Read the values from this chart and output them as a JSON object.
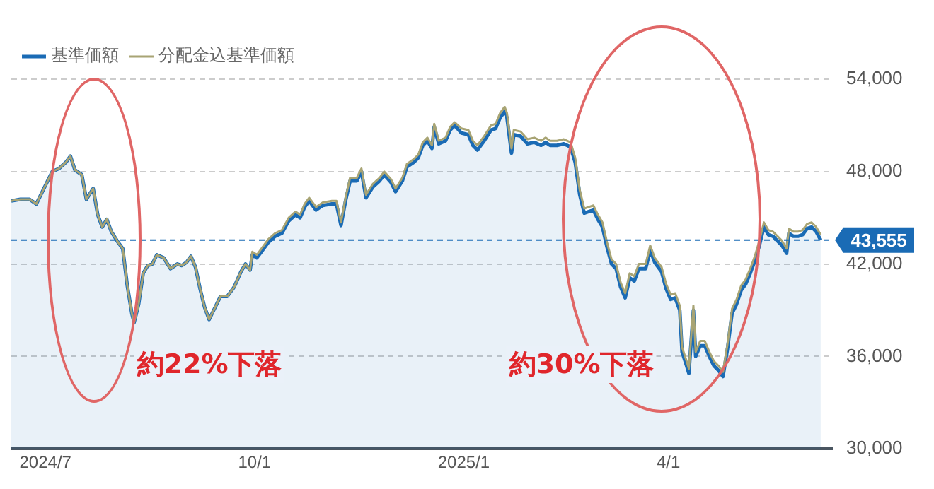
{
  "chart_data": {
    "type": "line",
    "x": [
      "2024-06-16",
      "2024-06-20",
      "2024-06-24",
      "2024-06-27",
      "2024-07-01",
      "2024-07-04",
      "2024-07-07",
      "2024-07-10",
      "2024-07-12",
      "2024-07-14",
      "2024-07-17",
      "2024-07-19",
      "2024-07-22",
      "2024-07-24",
      "2024-07-26",
      "2024-07-28",
      "2024-07-30",
      "2024-08-02",
      "2024-08-04",
      "2024-08-06",
      "2024-08-08",
      "2024-08-09",
      "2024-08-11",
      "2024-08-13",
      "2024-08-15",
      "2024-08-17",
      "2024-08-19",
      "2024-08-22",
      "2024-08-25",
      "2024-08-28",
      "2024-08-30",
      "2024-09-01",
      "2024-09-03",
      "2024-09-05",
      "2024-09-07",
      "2024-09-09",
      "2024-09-11",
      "2024-09-13",
      "2024-09-16",
      "2024-09-19",
      "2024-09-22",
      "2024-09-25",
      "2024-09-27",
      "2024-09-29",
      "2024-09-30",
      "2024-10-02",
      "2024-10-04",
      "2024-10-07",
      "2024-10-10",
      "2024-10-13",
      "2024-10-16",
      "2024-10-19",
      "2024-10-21",
      "2024-10-23",
      "2024-10-25",
      "2024-10-28",
      "2024-10-31",
      "2024-11-04",
      "2024-11-06",
      "2024-11-08",
      "2024-11-10",
      "2024-11-12",
      "2024-11-15",
      "2024-11-17",
      "2024-11-19",
      "2024-11-22",
      "2024-11-25",
      "2024-11-27",
      "2024-11-30",
      "2024-12-02",
      "2024-12-05",
      "2024-12-07",
      "2024-12-10",
      "2024-12-12",
      "2024-12-14",
      "2024-12-16",
      "2024-12-18",
      "2024-12-19",
      "2024-12-21",
      "2024-12-24",
      "2024-12-26",
      "2024-12-28",
      "2024-12-31",
      "2025-01-03",
      "2025-01-05",
      "2025-01-07",
      "2025-01-10",
      "2025-01-13",
      "2025-01-15",
      "2025-01-17",
      "2025-01-19",
      "2025-01-20",
      "2025-01-22",
      "2025-01-23",
      "2025-01-26",
      "2025-01-29",
      "2025-02-01",
      "2025-02-04",
      "2025-02-06",
      "2025-02-08",
      "2025-02-11",
      "2025-02-14",
      "2025-02-17",
      "2025-02-19",
      "2025-02-21",
      "2025-02-23",
      "2025-02-25",
      "2025-02-27",
      "2025-03-01",
      "2025-03-03",
      "2025-03-05",
      "2025-03-07",
      "2025-03-09",
      "2025-03-11",
      "2025-03-13",
      "2025-03-15",
      "2025-03-17",
      "2025-03-19",
      "2025-03-22",
      "2025-03-24",
      "2025-03-26",
      "2025-03-29",
      "2025-03-31",
      "2025-04-02",
      "2025-04-04",
      "2025-04-06",
      "2025-04-07",
      "2025-04-09",
      "2025-04-10",
      "2025-04-12",
      "2025-04-13",
      "2025-04-15",
      "2025-04-17",
      "2025-04-19",
      "2025-04-21",
      "2025-04-23",
      "2025-04-25",
      "2025-04-27",
      "2025-04-29",
      "2025-05-01",
      "2025-05-03",
      "2025-05-05",
      "2025-05-07",
      "2025-05-09",
      "2025-05-11",
      "2025-05-13",
      "2025-05-15",
      "2025-05-17",
      "2025-05-19",
      "2025-05-21",
      "2025-05-23",
      "2025-05-24",
      "2025-05-26",
      "2025-05-28",
      "2025-05-30",
      "2025-06-01",
      "2025-06-03",
      "2025-06-05",
      "2025-06-07"
    ],
    "series": [
      {
        "name": "基準価額",
        "type": "area",
        "color": "#1a6bb5",
        "values": [
          46100,
          46200,
          46200,
          45900,
          47100,
          48000,
          48200,
          48600,
          49000,
          48100,
          47800,
          46200,
          46900,
          45200,
          44400,
          44900,
          44100,
          43400,
          43000,
          40600,
          38800,
          38200,
          39400,
          41400,
          41900,
          42000,
          42600,
          42400,
          41700,
          42000,
          41900,
          42100,
          42500,
          41800,
          40400,
          39200,
          38400,
          39000,
          39900,
          39900,
          40500,
          41500,
          42000,
          41600,
          42600,
          42400,
          42800,
          43400,
          43800,
          44000,
          44800,
          45200,
          45000,
          45700,
          46100,
          45500,
          45800,
          45900,
          45900,
          44500,
          46100,
          47400,
          47400,
          48000,
          46300,
          47000,
          47400,
          47800,
          47300,
          46700,
          47400,
          48300,
          48600,
          48900,
          49700,
          50000,
          49500,
          50900,
          49800,
          50000,
          50700,
          51000,
          50500,
          50400,
          49700,
          49400,
          50000,
          50700,
          50800,
          51500,
          51900,
          51500,
          49200,
          50400,
          50300,
          49800,
          49900,
          49700,
          49900,
          49700,
          49700,
          49800,
          49600,
          48600,
          46500,
          45300,
          45400,
          45500,
          44900,
          44400,
          43100,
          42000,
          41700,
          40500,
          39800,
          41100,
          40900,
          41700,
          41700,
          42900,
          42100,
          41500,
          40400,
          39700,
          39800,
          39000,
          36300,
          35400,
          34900,
          39000,
          36000,
          36700,
          36700,
          36000,
          35400,
          35100,
          34700,
          36500,
          38800,
          39400,
          40300,
          40700,
          41400,
          42200,
          43200,
          44400,
          43900,
          43800,
          43500,
          43200,
          42700,
          44000,
          43800,
          43800,
          43900,
          44300,
          44400,
          44100,
          43555
        ]
      },
      {
        "name": "分配金込基準価額",
        "type": "line",
        "color": "#a8a474",
        "values": [
          46100,
          46200,
          46200,
          45900,
          47100,
          48000,
          48200,
          48600,
          49000,
          48100,
          47800,
          46200,
          46900,
          45200,
          44400,
          44900,
          44100,
          43400,
          43000,
          40600,
          38800,
          38200,
          39400,
          41400,
          41900,
          42000,
          42600,
          42400,
          41700,
          42000,
          41900,
          42100,
          42500,
          41800,
          40400,
          39200,
          38400,
          39000,
          39900,
          39900,
          40500,
          41500,
          42000,
          41600,
          42800,
          42600,
          43000,
          43600,
          44000,
          44200,
          45000,
          45400,
          45200,
          45900,
          46300,
          45700,
          46000,
          46100,
          46100,
          44700,
          46300,
          47600,
          47600,
          48200,
          46500,
          47200,
          47600,
          48000,
          47500,
          46900,
          47600,
          48500,
          48800,
          49100,
          49900,
          50200,
          49700,
          51100,
          50000,
          50200,
          50900,
          51200,
          50800,
          50700,
          50000,
          49700,
          50300,
          51000,
          51100,
          51800,
          52200,
          51800,
          49500,
          50700,
          50600,
          50100,
          50200,
          50000,
          50200,
          50000,
          50000,
          50100,
          49900,
          48900,
          46800,
          45600,
          45700,
          45800,
          45200,
          44700,
          43400,
          42300,
          42000,
          40800,
          40100,
          41400,
          41200,
          42000,
          42000,
          43200,
          42400,
          41800,
          40700,
          40000,
          40100,
          39300,
          36600,
          35700,
          35200,
          39300,
          36300,
          37000,
          37000,
          36300,
          35700,
          35400,
          35000,
          36800,
          39100,
          39700,
          40600,
          41000,
          41700,
          42500,
          43500,
          44700,
          44200,
          44100,
          43800,
          43500,
          43000,
          44300,
          44100,
          44100,
          44200,
          44600,
          44700,
          44400,
          43900
        ]
      }
    ],
    "xlim": [
      "2024-06-16",
      "2025-06-12"
    ],
    "xticks": [
      {
        "value": "2024-07-01",
        "label": "2024/7"
      },
      {
        "value": "2024-10-01",
        "label": "10/1"
      },
      {
        "value": "2025-01-01",
        "label": "2025/1"
      },
      {
        "value": "2025-04-01",
        "label": "4/1"
      }
    ],
    "ylim": [
      30000,
      54000
    ],
    "yticks": [
      {
        "value": 30000,
        "label": "30,000"
      },
      {
        "value": 36000,
        "label": "36,000"
      },
      {
        "value": 42000,
        "label": "42,000"
      },
      {
        "value": 48000,
        "label": "48,000"
      },
      {
        "value": 54000,
        "label": "54,000"
      }
    ],
    "ref_lines": [
      {
        "axis": "y",
        "value": 43555,
        "label": "43,555",
        "color": "#1a6bb5",
        "line_style": "dashed"
      }
    ],
    "annotations": [
      "約22%下落",
      "約30%下落"
    ],
    "grid": "y",
    "legend": "top left",
    "marker": "none",
    "line_style": "solid"
  }
}
